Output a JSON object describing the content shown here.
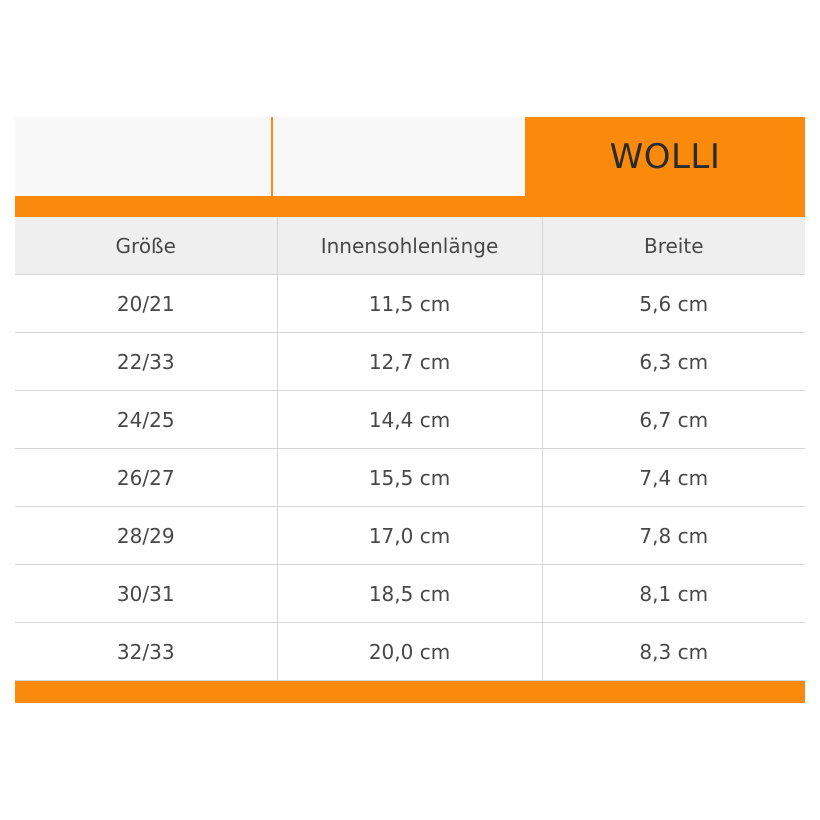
{
  "brand": "WOLLI",
  "colors": {
    "accent": "#f98a0b",
    "header_bg": "#efefef"
  },
  "table": {
    "headers": [
      "Größe",
      "Innensohlenlänge",
      "Breite"
    ],
    "rows": [
      [
        "20/21",
        "11,5 cm",
        "5,6 cm"
      ],
      [
        "22/33",
        "12,7 cm",
        "6,3 cm"
      ],
      [
        "24/25",
        "14,4 cm",
        "6,7 cm"
      ],
      [
        "26/27",
        "15,5 cm",
        "7,4 cm"
      ],
      [
        "28/29",
        "17,0 cm",
        "7,8 cm"
      ],
      [
        "30/31",
        "18,5 cm",
        "8,1 cm"
      ],
      [
        "32/33",
        "20,0 cm",
        "8,3 cm"
      ]
    ]
  }
}
